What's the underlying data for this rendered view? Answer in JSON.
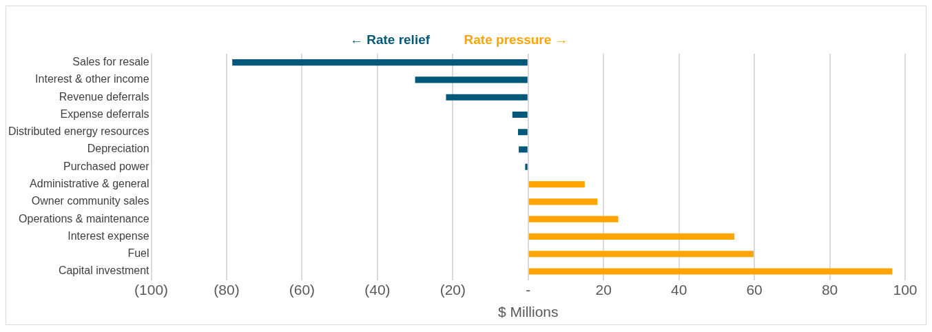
{
  "chart_data": {
    "type": "bar",
    "orientation": "horizontal",
    "stacked": true,
    "categories": [
      "Sales for resale",
      "Interest & other income",
      "Revenue deferrals",
      "Expense deferrals",
      "Distributed energy resources",
      "Depreciation",
      "Purchased power",
      "Administrative & general",
      "Owner community sales",
      "Operations & maintenance",
      "Interest expense",
      "Fuel",
      "Capital investment"
    ],
    "series": [
      {
        "name": "← Rate relief",
        "color": "#03587a",
        "values": [
          -78.5,
          -30,
          -21.8,
          -4.2,
          -2.7,
          -2.5,
          -0.8,
          null,
          null,
          null,
          null,
          null,
          null
        ]
      },
      {
        "name": "Rate pressure →",
        "color": "#ffa400",
        "values": [
          null,
          null,
          null,
          null,
          null,
          null,
          null,
          15,
          18.4,
          23.9,
          54.7,
          59.8,
          96.6
        ]
      }
    ],
    "xlabel": "$ Millions",
    "xlim": [
      -100,
      100
    ],
    "xticks": [
      {
        "value": -100,
        "label": "(100)"
      },
      {
        "value": -80,
        "label": "(80)"
      },
      {
        "value": -60,
        "label": "(60)"
      },
      {
        "value": -40,
        "label": "(40)"
      },
      {
        "value": -20,
        "label": "(20)"
      },
      {
        "value": 0,
        "label": "-"
      },
      20,
      40,
      60,
      80,
      100
    ],
    "grid": "x",
    "legend": "top"
  }
}
